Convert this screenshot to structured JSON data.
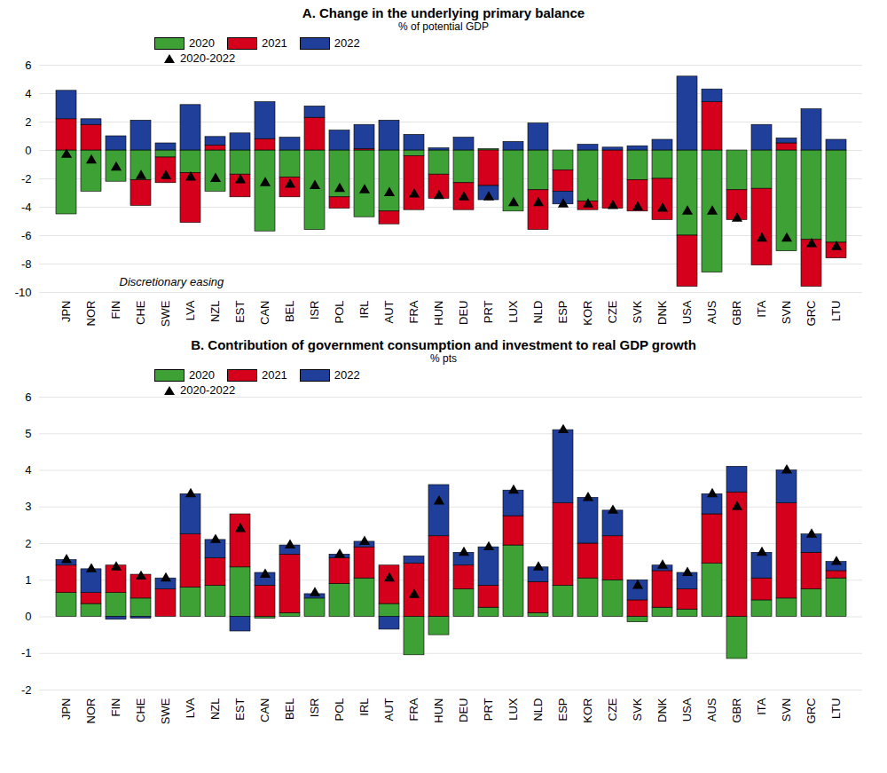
{
  "chart_data": [
    {
      "type": "bar",
      "stacked": true,
      "grid": true,
      "legend": "top-left",
      "title": "A. Change in the underlying primary balance",
      "subtitle": "% of potential GDP",
      "annotations": [
        "Discretionary easing"
      ],
      "categories": [
        "JPN",
        "NOR",
        "FIN",
        "CHE",
        "SWE",
        "LVA",
        "NZL",
        "EST",
        "CAN",
        "BEL",
        "ISR",
        "POL",
        "IRL",
        "AUT",
        "FRA",
        "HUN",
        "DEU",
        "PRT",
        "LUX",
        "NLD",
        "ESP",
        "KOR",
        "CZE",
        "SVK",
        "DNK",
        "USA",
        "AUS",
        "GBR",
        "ITA",
        "SVN",
        "GRC",
        "LTU"
      ],
      "series": [
        {
          "name": "2020",
          "color": "#3ea135",
          "values": [
            -4.5,
            -2.9,
            -2.2,
            -2.1,
            -0.5,
            -1.6,
            -2.9,
            -1.7,
            -5.7,
            -1.9,
            -5.6,
            -3.3,
            -4.7,
            -4.3,
            -0.4,
            -1.7,
            -2.3,
            0.1,
            -4.3,
            -2.8,
            -1.4,
            -3.6,
            0,
            -2.1,
            -2.0,
            -6.0,
            -8.6,
            -2.8,
            -2.7,
            -7.1,
            -6.3,
            -6.5
          ]
        },
        {
          "name": "2021",
          "color": "#d4001c",
          "values": [
            2.2,
            1.8,
            0,
            -1.8,
            -1.8,
            -3.5,
            0.35,
            -1.6,
            0.8,
            -1.4,
            2.3,
            -0.8,
            0.1,
            -0.9,
            -3.8,
            -1.7,
            -1.9,
            -2.5,
            0,
            -2.8,
            -1.5,
            -0.6,
            -4.1,
            -2.2,
            -2.9,
            -3.6,
            3.4,
            -2.1,
            -5.4,
            0.5,
            -3.3,
            -1.1
          ]
        },
        {
          "name": "2022",
          "color": "#1f3f9b",
          "values": [
            2.0,
            0.4,
            1.0,
            2.1,
            0.5,
            3.2,
            0.6,
            1.2,
            2.6,
            0.9,
            0.8,
            1.4,
            1.7,
            2.1,
            1.1,
            0.15,
            0.9,
            -1.0,
            0.6,
            1.9,
            -0.9,
            0.4,
            0.2,
            0.3,
            0.75,
            5.2,
            0.9,
            0,
            1.8,
            0.35,
            2.9,
            0.75
          ]
        },
        {
          "name": "2020-2022",
          "type": "scatter",
          "marker": "triangle",
          "color": "#000000",
          "values": [
            -0.3,
            -0.7,
            -1.2,
            -1.8,
            -1.8,
            -1.9,
            -2.0,
            -2.1,
            -2.3,
            -2.4,
            -2.5,
            -2.7,
            -2.8,
            -3.0,
            -3.1,
            -3.2,
            -3.3,
            -3.3,
            -3.7,
            -3.7,
            -3.8,
            -3.8,
            -3.9,
            -4.0,
            -4.1,
            -4.3,
            -4.3,
            -4.8,
            -6.2,
            -6.2,
            -6.6,
            -6.8
          ]
        }
      ],
      "ylim": [
        -10,
        6
      ],
      "yticks": [
        -10,
        -8,
        -6,
        -4,
        -2,
        0,
        2,
        4,
        6
      ]
    },
    {
      "type": "bar",
      "stacked": true,
      "grid": true,
      "legend": "top-left",
      "title": "B. Contribution of government consumption and investment to real GDP growth",
      "subtitle": "% pts",
      "categories": [
        "JPN",
        "NOR",
        "FIN",
        "CHE",
        "SWE",
        "LVA",
        "NZL",
        "EST",
        "CAN",
        "BEL",
        "ISR",
        "POL",
        "IRL",
        "AUT",
        "FRA",
        "HUN",
        "DEU",
        "PRT",
        "LUX",
        "NLD",
        "ESP",
        "KOR",
        "CZE",
        "SVK",
        "DNK",
        "USA",
        "AUS",
        "GBR",
        "ITA",
        "SVN",
        "GRC",
        "LTU"
      ],
      "series": [
        {
          "name": "2020",
          "color": "#3ea135",
          "values": [
            0.65,
            0.35,
            0.65,
            0.5,
            0,
            0.8,
            0.85,
            1.35,
            -0.05,
            0.1,
            0.5,
            0.9,
            1.05,
            0.35,
            -1.05,
            -0.5,
            0.75,
            0.25,
            1.95,
            0.1,
            0.85,
            1.05,
            1.0,
            -0.15,
            0.25,
            0.2,
            1.45,
            -1.15,
            0.45,
            0.5,
            0.75,
            1.05
          ]
        },
        {
          "name": "2021",
          "color": "#d4001c",
          "values": [
            0.75,
            0.3,
            0.75,
            0.65,
            0.75,
            1.45,
            0.75,
            1.45,
            0.85,
            1.6,
            0,
            0.7,
            0.85,
            1.05,
            1.45,
            2.2,
            0.65,
            0.6,
            0.8,
            0.85,
            2.25,
            0.95,
            1.2,
            0.45,
            1.0,
            0.55,
            1.35,
            3.4,
            0.6,
            2.6,
            1.0,
            0.2
          ]
        },
        {
          "name": "2022",
          "color": "#1f3f9b",
          "values": [
            0.15,
            0.65,
            -0.08,
            -0.05,
            0.3,
            1.1,
            0.5,
            -0.4,
            0.35,
            0.25,
            0.12,
            0.1,
            0.15,
            -0.35,
            0.2,
            1.4,
            0.35,
            1.05,
            0.7,
            0.4,
            2.0,
            1.25,
            0.7,
            0.55,
            0.15,
            0.45,
            0.55,
            0.7,
            0.7,
            0.9,
            0.5,
            0.25
          ]
        },
        {
          "name": "2020-2022",
          "type": "scatter",
          "marker": "triangle",
          "color": "#000000",
          "values": [
            1.55,
            1.3,
            1.35,
            1.1,
            1.05,
            3.35,
            2.1,
            2.4,
            1.15,
            1.95,
            0.65,
            1.7,
            2.05,
            1.05,
            0.6,
            3.15,
            1.75,
            1.9,
            3.45,
            1.35,
            5.1,
            3.25,
            2.9,
            0.85,
            1.4,
            1.2,
            3.35,
            3.0,
            1.75,
            4.0,
            2.25,
            1.5
          ]
        }
      ],
      "ylim": [
        -2,
        6
      ],
      "yticks": [
        -2,
        -1,
        0,
        1,
        2,
        3,
        4,
        5,
        6
      ]
    }
  ]
}
